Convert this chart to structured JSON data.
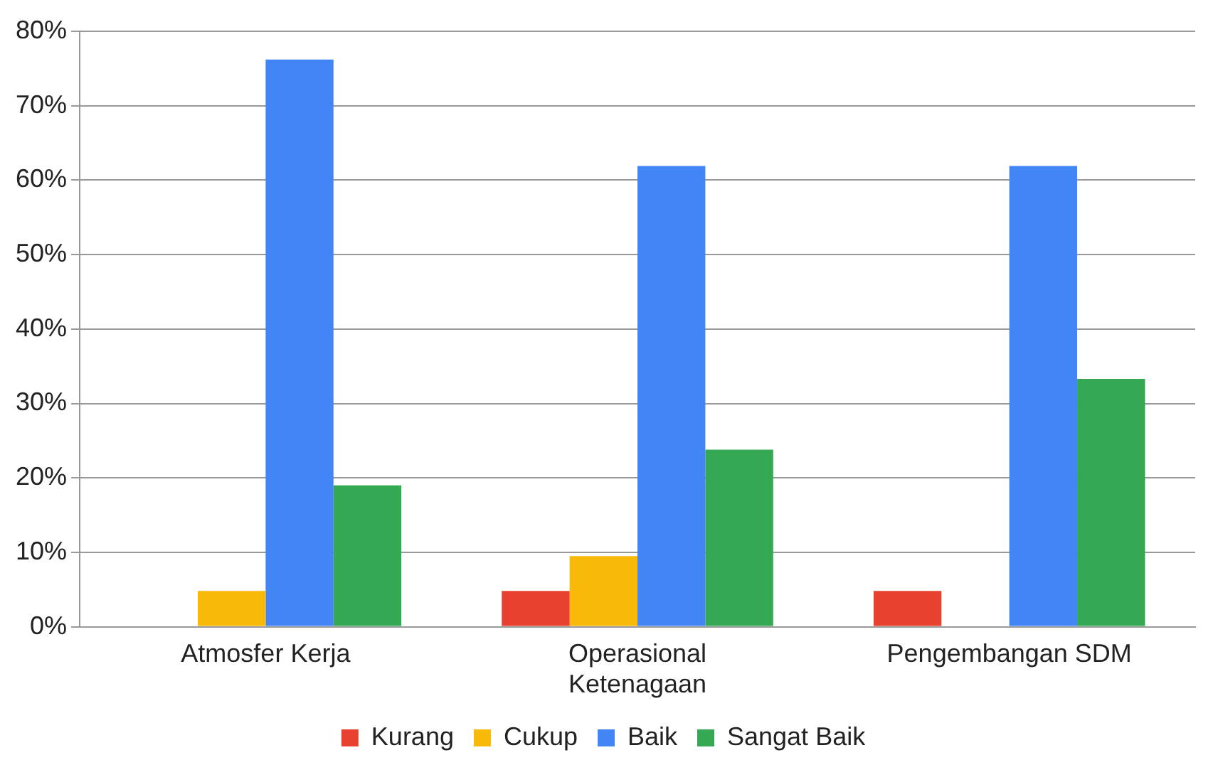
{
  "chart_data": {
    "type": "bar",
    "categories": [
      "Atmosfer Kerja",
      "Operasional Ketenagaan",
      "Pengembangan SDM"
    ],
    "series": [
      {
        "name": "Kurang",
        "color": "#e8412f",
        "values": [
          0,
          4.8,
          4.8
        ]
      },
      {
        "name": "Cukup",
        "color": "#f8b908",
        "values": [
          4.8,
          9.5,
          0
        ]
      },
      {
        "name": "Baik",
        "color": "#4285f4",
        "values": [
          76.2,
          61.9,
          61.9
        ]
      },
      {
        "name": "Sangat Baik",
        "color": "#34a853",
        "values": [
          19,
          23.8,
          33.3
        ]
      }
    ],
    "ylim": [
      0,
      80
    ],
    "yticks": [
      {
        "value": 0,
        "label": "0%"
      },
      {
        "value": 10,
        "label": "10%"
      },
      {
        "value": 20,
        "label": "20%"
      },
      {
        "value": 30,
        "label": "30%"
      },
      {
        "value": 40,
        "label": "40%"
      },
      {
        "value": 50,
        "label": "50%"
      },
      {
        "value": 60,
        "label": "60%"
      },
      {
        "value": 70,
        "label": "70%"
      },
      {
        "value": 80,
        "label": "80%"
      }
    ],
    "grid": "y",
    "legend": "bottom"
  }
}
